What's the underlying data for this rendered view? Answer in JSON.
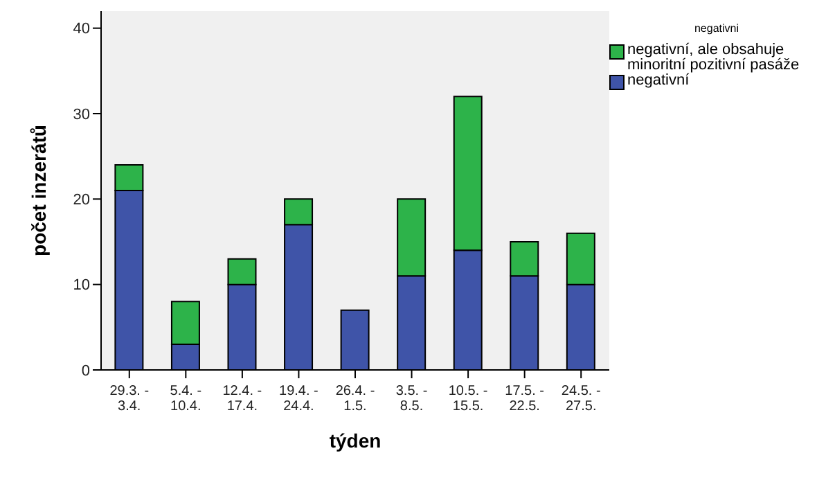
{
  "chart_data": {
    "type": "bar",
    "stacked": true,
    "xlabel": "týden",
    "ylabel": "počet inzerátů",
    "legend_title": "negativni",
    "categories": [
      "29.3. - 3.4.",
      "5.4. - 10.4.",
      "12.4. - 17.4.",
      "19.4. - 24.4.",
      "26.4. - 1.5.",
      "3.5. - 8.5.",
      "10.5. - 15.5.",
      "17.5. - 22.5.",
      "24.5. - 27.5."
    ],
    "series": [
      {
        "name": "negativní",
        "color": "#3f54a8",
        "values": [
          21,
          3,
          10,
          17,
          7,
          11,
          14,
          11,
          10
        ]
      },
      {
        "name": "negativní, ale obsahuje minoritní pozitivní pasáže",
        "color": "#2db34a",
        "values": [
          3,
          5,
          3,
          3,
          0,
          9,
          18,
          4,
          6
        ]
      }
    ],
    "ylim": [
      0,
      42
    ],
    "yticks": [
      0,
      10,
      20,
      30,
      40
    ],
    "grid": false,
    "legend": "top right"
  }
}
